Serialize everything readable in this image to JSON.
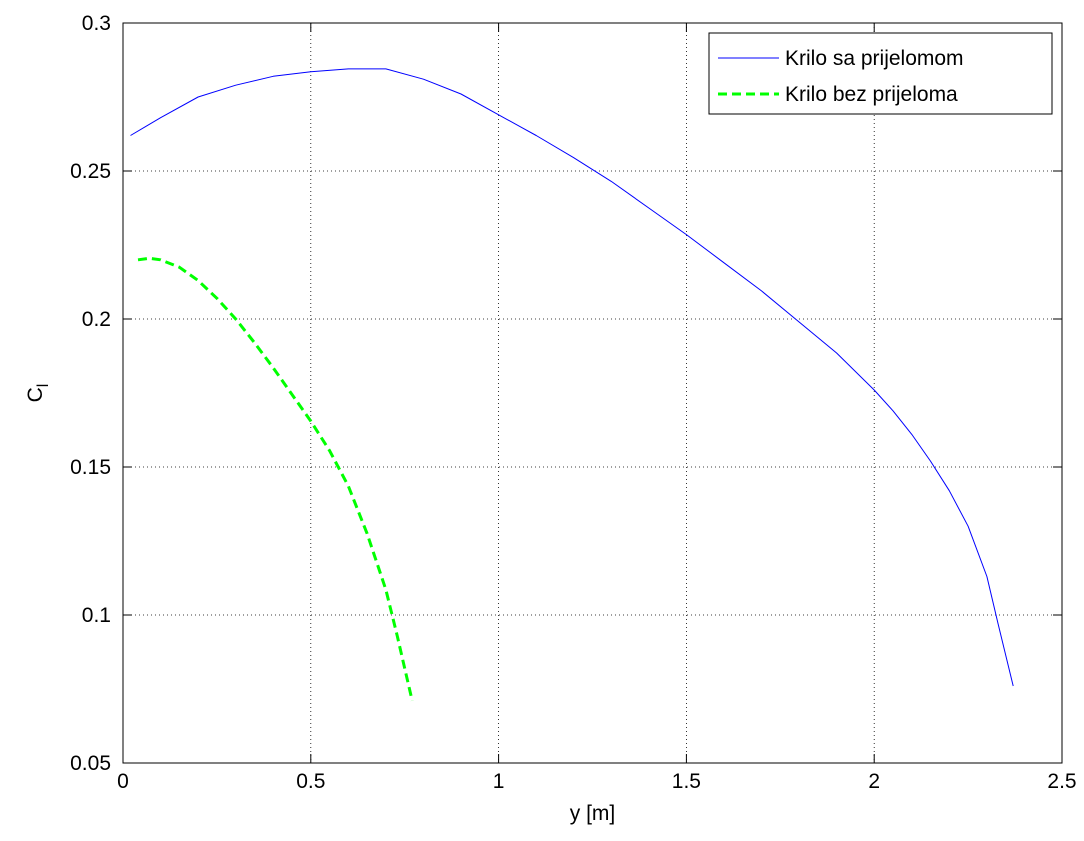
{
  "chart_data": {
    "type": "line",
    "title": "",
    "xlabel": "y [m]",
    "ylabel_main": "C",
    "ylabel_sub": "l",
    "xlim": [
      0,
      2.5
    ],
    "ylim": [
      0.05,
      0.3
    ],
    "xticks": [
      0,
      0.5,
      1,
      1.5,
      2,
      2.5
    ],
    "yticks": [
      0.05,
      0.1,
      0.15,
      0.2,
      0.25,
      0.3
    ],
    "xtick_labels": [
      "0",
      "0.5",
      "1",
      "1.5",
      "2",
      "2.5"
    ],
    "ytick_labels": [
      "0.05",
      "0.1",
      "0.15",
      "0.2",
      "0.25",
      "0.3"
    ],
    "grid": true,
    "legend_position": "top-right",
    "series": [
      {
        "name": "Krilo sa prijelomom",
        "color": "#0000ff",
        "style": "solid",
        "x": [
          0.02,
          0.1,
          0.2,
          0.3,
          0.4,
          0.5,
          0.6,
          0.7,
          0.8,
          0.9,
          1.0,
          1.1,
          1.2,
          1.3,
          1.4,
          1.5,
          1.6,
          1.7,
          1.8,
          1.9,
          2.0,
          2.05,
          2.1,
          2.15,
          2.2,
          2.25,
          2.3,
          2.33,
          2.37
        ],
        "y": [
          0.262,
          0.268,
          0.275,
          0.279,
          0.282,
          0.2835,
          0.2845,
          0.2845,
          0.281,
          0.276,
          0.269,
          0.262,
          0.2545,
          0.2465,
          0.2375,
          0.2285,
          0.219,
          0.2095,
          0.199,
          0.1885,
          0.176,
          0.169,
          0.161,
          0.152,
          0.142,
          0.13,
          0.113,
          0.097,
          0.076
        ]
      },
      {
        "name": "Krilo bez prijeloma",
        "color": "#00ff00",
        "style": "dashed",
        "x": [
          0.04,
          0.07,
          0.1,
          0.15,
          0.2,
          0.25,
          0.3,
          0.35,
          0.4,
          0.45,
          0.5,
          0.55,
          0.6,
          0.65,
          0.7,
          0.73,
          0.75,
          0.77
        ],
        "y": [
          0.22,
          0.2205,
          0.22,
          0.2175,
          0.213,
          0.207,
          0.2,
          0.192,
          0.1835,
          0.1745,
          0.1655,
          0.1555,
          0.1435,
          0.1275,
          0.1085,
          0.093,
          0.082,
          0.071
        ]
      }
    ]
  }
}
